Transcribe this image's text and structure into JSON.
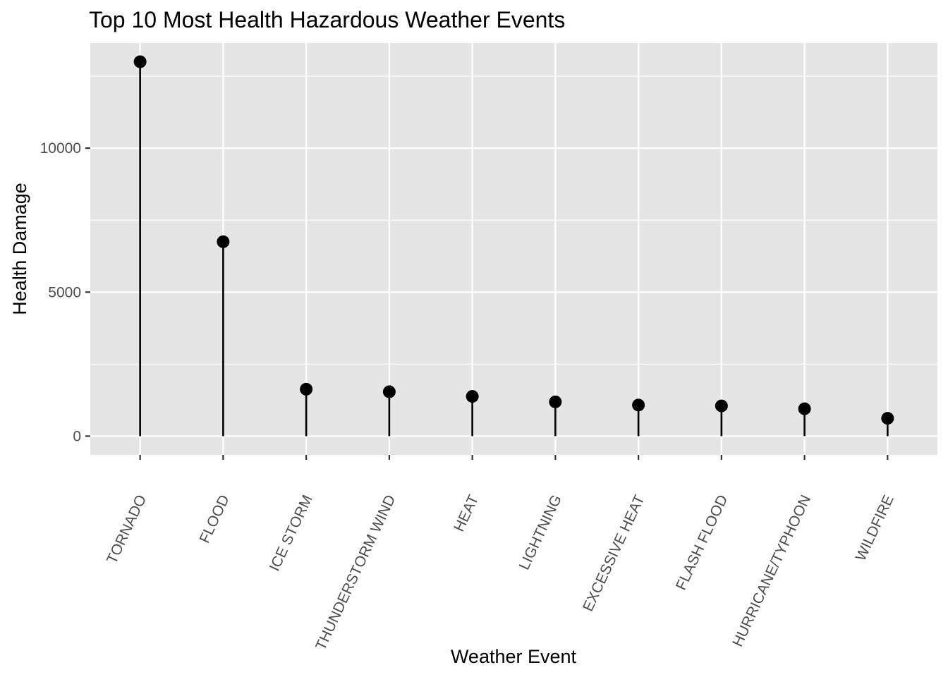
{
  "chart_data": {
    "type": "lollipop",
    "title": "Top 10 Most Health Hazardous Weather Events",
    "xlabel": "Weather Event",
    "ylabel": "Health Damage",
    "categories": [
      "TORNADO",
      "FLOOD",
      "ICE STORM",
      "THUNDERSTORM WIND",
      "HEAT",
      "LIGHTNING",
      "EXCESSIVE HEAT",
      "FLASH FLOOD",
      "HURRICANE/TYPHOON",
      "WILDFIRE"
    ],
    "values": [
      13000,
      6750,
      1630,
      1540,
      1380,
      1190,
      1080,
      1050,
      950,
      620
    ],
    "ylim": [
      -650,
      13650
    ],
    "yticks": [
      0,
      5000,
      10000
    ],
    "ytick_labels": [
      "0",
      "5000",
      "10000"
    ],
    "x_tick_label_rotation": -65,
    "grid": true,
    "legend": "none",
    "colors": {
      "panel_background": "#e5e5e5",
      "grid": "#ffffff",
      "mark": "#000000",
      "tick_text": "#4d4d4d",
      "tick_mark": "#333333"
    }
  }
}
